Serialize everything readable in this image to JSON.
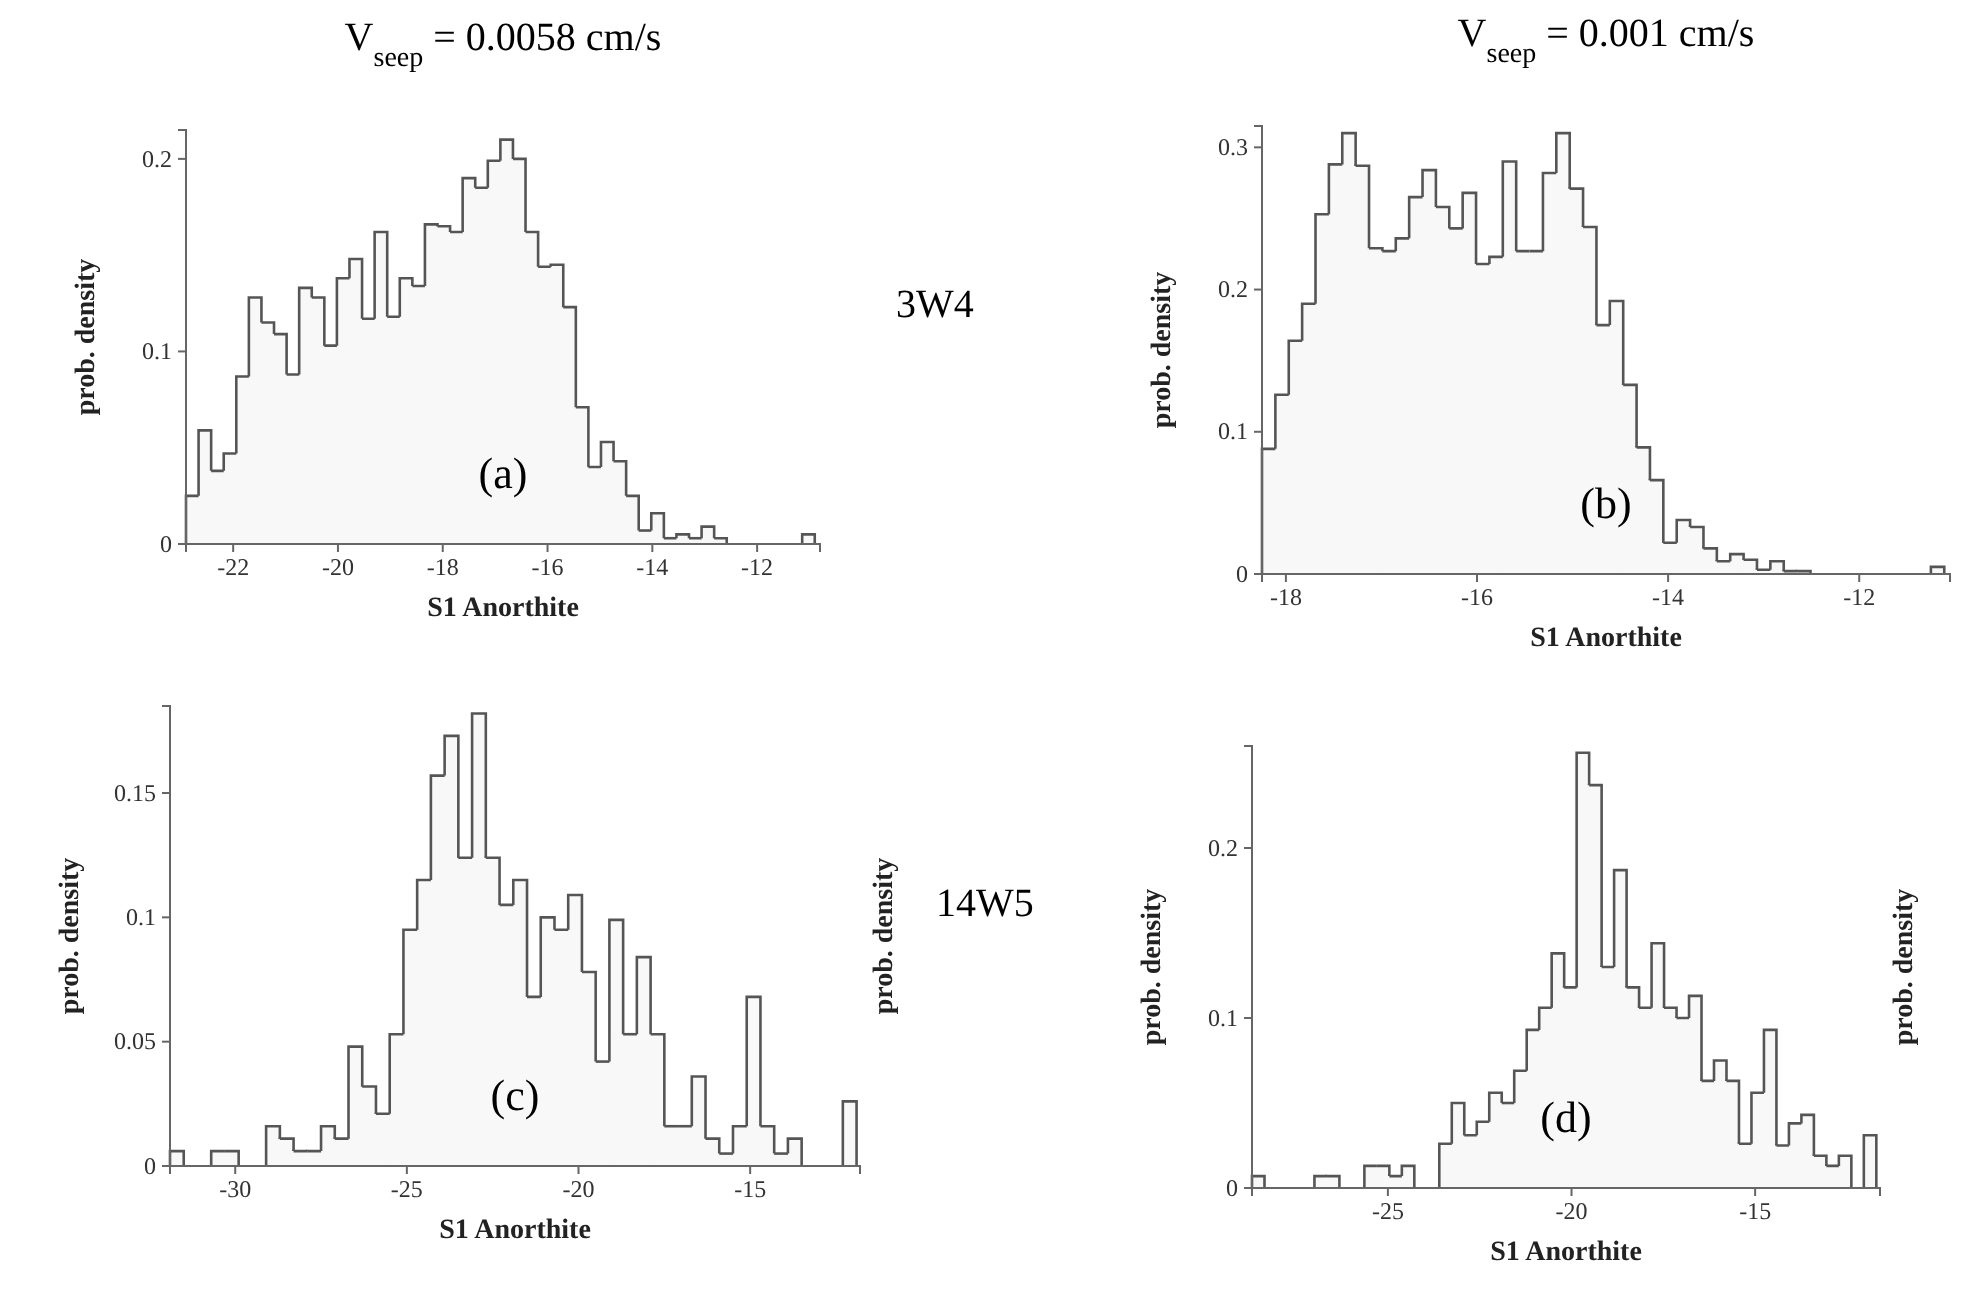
{
  "chart_data": [
    {
      "type": "histogram",
      "title": "V$_{seep}$ = 0.0058 cm/s",
      "xlabel": "S1 Anorthite",
      "ylabel": "prob. density",
      "annotations": [
        "(a)",
        "3W4"
      ],
      "color": "#555555",
      "bins": [
        -22.9,
        -22.66,
        -22.42,
        -22.18,
        -21.94,
        -21.7,
        -21.46,
        -21.22,
        -20.98,
        -20.74,
        -20.5,
        -20.26,
        -20.02,
        -19.78,
        -19.54,
        -19.3,
        -19.06,
        -18.82,
        -18.58,
        -18.34,
        -18.1,
        -17.86,
        -17.62,
        -17.38,
        -17.14,
        -16.9,
        -16.66,
        -16.42,
        -16.18,
        -15.94,
        -15.7,
        -15.46,
        -15.22,
        -14.98,
        -14.74,
        -14.5,
        -14.26,
        -14.02,
        -13.78,
        -13.54,
        -13.3,
        -13.06,
        -12.82,
        -12.58,
        -12.34,
        -12.1,
        -11.86,
        -11.62,
        -11.38,
        -11.14,
        -10.9
      ],
      "values": [
        0.025,
        0.059,
        0.038,
        0.047,
        0.087,
        0.128,
        0.115,
        0.109,
        0.088,
        0.133,
        0.128,
        0.103,
        0.138,
        0.148,
        0.117,
        0.162,
        0.118,
        0.138,
        0.134,
        0.166,
        0.165,
        0.162,
        0.19,
        0.185,
        0.199,
        0.21,
        0.2,
        0.162,
        0.144,
        0.145,
        0.123,
        0.071,
        0.04,
        0.053,
        0.043,
        0.025,
        0.007,
        0.016,
        0.003,
        0.005,
        0.003,
        0.009,
        0.003,
        0,
        0,
        0,
        0,
        0,
        0,
        0.005
      ],
      "xlim": [
        -22.9,
        -10.8
      ],
      "ylim": [
        0,
        0.215
      ],
      "xticks": [
        -22,
        -20,
        -18,
        -16,
        -14,
        -12
      ],
      "yticks": [
        0,
        0.1,
        0.2
      ]
    },
    {
      "type": "histogram",
      "title": "V$_{seep}$ = 0.001 cm/s",
      "xlabel": "S1 Anorthite",
      "ylabel": "prob. density",
      "annotations": [
        "(b)"
      ],
      "color": "#555555",
      "bins": [
        -18.25,
        -18.11,
        -17.97,
        -17.83,
        -17.69,
        -17.55,
        -17.41,
        -17.27,
        -17.13,
        -16.99,
        -16.85,
        -16.71,
        -16.57,
        -16.43,
        -16.29,
        -16.15,
        -16.01,
        -15.87,
        -15.73,
        -15.59,
        -15.45,
        -15.31,
        -15.17,
        -15.03,
        -14.89,
        -14.75,
        -14.61,
        -14.47,
        -14.33,
        -14.19,
        -14.05,
        -13.91,
        -13.77,
        -13.63,
        -13.49,
        -13.35,
        -13.21,
        -13.07,
        -12.93,
        -12.79,
        -12.65,
        -12.51,
        -12.37,
        -12.23,
        -12.09,
        -11.95,
        -11.81,
        -11.67,
        -11.53,
        -11.39,
        -11.25,
        -11.11
      ],
      "values": [
        0.088,
        0.126,
        0.164,
        0.19,
        0.253,
        0.288,
        0.31,
        0.287,
        0.229,
        0.227,
        0.236,
        0.265,
        0.284,
        0.258,
        0.243,
        0.268,
        0.218,
        0.223,
        0.29,
        0.227,
        0.227,
        0.282,
        0.31,
        0.271,
        0.244,
        0.175,
        0.192,
        0.133,
        0.089,
        0.066,
        0.022,
        0.038,
        0.033,
        0.018,
        0.009,
        0.014,
        0.01,
        0.003,
        0.009,
        0.002,
        0.002,
        0,
        0,
        0,
        0,
        0,
        0,
        0,
        0,
        0,
        0.005
      ],
      "xlim": [
        -18.25,
        -11.05
      ],
      "ylim": [
        0,
        0.315
      ],
      "xticks": [
        -18,
        -16,
        -14,
        -12
      ],
      "yticks": [
        0,
        0.1,
        0.2,
        0.3
      ]
    },
    {
      "type": "histogram",
      "xlabel": "S1 Anorthite",
      "ylabel": "prob. density",
      "y2label": "prob. density",
      "annotations": [
        "(c)",
        "14W5"
      ],
      "color": "#555555",
      "bins": [
        -31.9,
        -31.5,
        -31.1,
        -30.7,
        -30.3,
        -29.9,
        -29.5,
        -29.1,
        -28.7,
        -28.3,
        -27.9,
        -27.5,
        -27.1,
        -26.7,
        -26.3,
        -25.9,
        -25.5,
        -25.1,
        -24.7,
        -24.3,
        -23.9,
        -23.5,
        -23.1,
        -22.7,
        -22.3,
        -21.9,
        -21.5,
        -21.1,
        -20.7,
        -20.3,
        -19.9,
        -19.5,
        -19.1,
        -18.7,
        -18.3,
        -17.9,
        -17.5,
        -17.1,
        -16.7,
        -16.3,
        -15.9,
        -15.5,
        -15.1,
        -14.7,
        -14.3,
        -13.9,
        -13.5,
        -13.1,
        -12.7,
        -12.3,
        -11.9
      ],
      "values": [
        0.006,
        0,
        0,
        0.006,
        0.006,
        0,
        0,
        0.016,
        0.011,
        0.006,
        0.006,
        0.016,
        0.011,
        0.048,
        0.032,
        0.021,
        0.053,
        0.095,
        0.115,
        0.157,
        0.173,
        0.124,
        0.182,
        0.124,
        0.105,
        0.115,
        0.068,
        0.1,
        0.095,
        0.109,
        0.078,
        0.042,
        0.099,
        0.053,
        0.084,
        0.053,
        0.016,
        0.016,
        0.036,
        0.011,
        0.005,
        0.016,
        0.068,
        0.016,
        0.005,
        0.011,
        0,
        0,
        0,
        0.026
      ],
      "xlim": [
        -31.9,
        -11.8
      ],
      "ylim": [
        0,
        0.185
      ],
      "xticks": [
        -30,
        -25,
        -20,
        -15
      ],
      "yticks": [
        0,
        0.05,
        0.1,
        0.15
      ]
    },
    {
      "type": "histogram",
      "xlabel": "S1 Anorthite",
      "ylabel": "prob. density",
      "y2label": "prob. density",
      "annotations": [
        "(d)"
      ],
      "color": "#555555",
      "bins": [
        -28.7,
        -28.36,
        -28.02,
        -27.68,
        -27.34,
        -27,
        -26.66,
        -26.32,
        -25.98,
        -25.64,
        -25.3,
        -24.96,
        -24.62,
        -24.28,
        -23.94,
        -23.6,
        -23.26,
        -22.92,
        -22.58,
        -22.24,
        -21.9,
        -21.56,
        -21.22,
        -20.88,
        -20.54,
        -20.2,
        -19.86,
        -19.52,
        -19.18,
        -18.84,
        -18.5,
        -18.16,
        -17.82,
        -17.48,
        -17.14,
        -16.8,
        -16.46,
        -16.12,
        -15.78,
        -15.44,
        -15.1,
        -14.76,
        -14.42,
        -14.08,
        -13.74,
        -13.4,
        -13.06,
        -12.72,
        -12.38,
        -12.04,
        -11.7
      ],
      "values": [
        0.007,
        0,
        0,
        0,
        0,
        0.007,
        0.007,
        0,
        0,
        0.013,
        0.013,
        0.007,
        0.013,
        0,
        0,
        0.026,
        0.05,
        0.031,
        0.039,
        0.056,
        0.05,
        0.069,
        0.093,
        0.106,
        0.138,
        0.118,
        0.256,
        0.237,
        0.13,
        0.187,
        0.118,
        0.106,
        0.144,
        0.106,
        0.1,
        0.113,
        0.063,
        0.075,
        0.063,
        0.026,
        0.056,
        0.093,
        0.025,
        0.038,
        0.043,
        0.019,
        0.013,
        0.019,
        0,
        0.031
      ],
      "xlim": [
        -28.7,
        -11.6
      ],
      "ylim": [
        0,
        0.26
      ],
      "xticks": [
        -25,
        -20,
        -15
      ],
      "yticks": [
        0,
        0.1,
        0.2
      ]
    }
  ]
}
